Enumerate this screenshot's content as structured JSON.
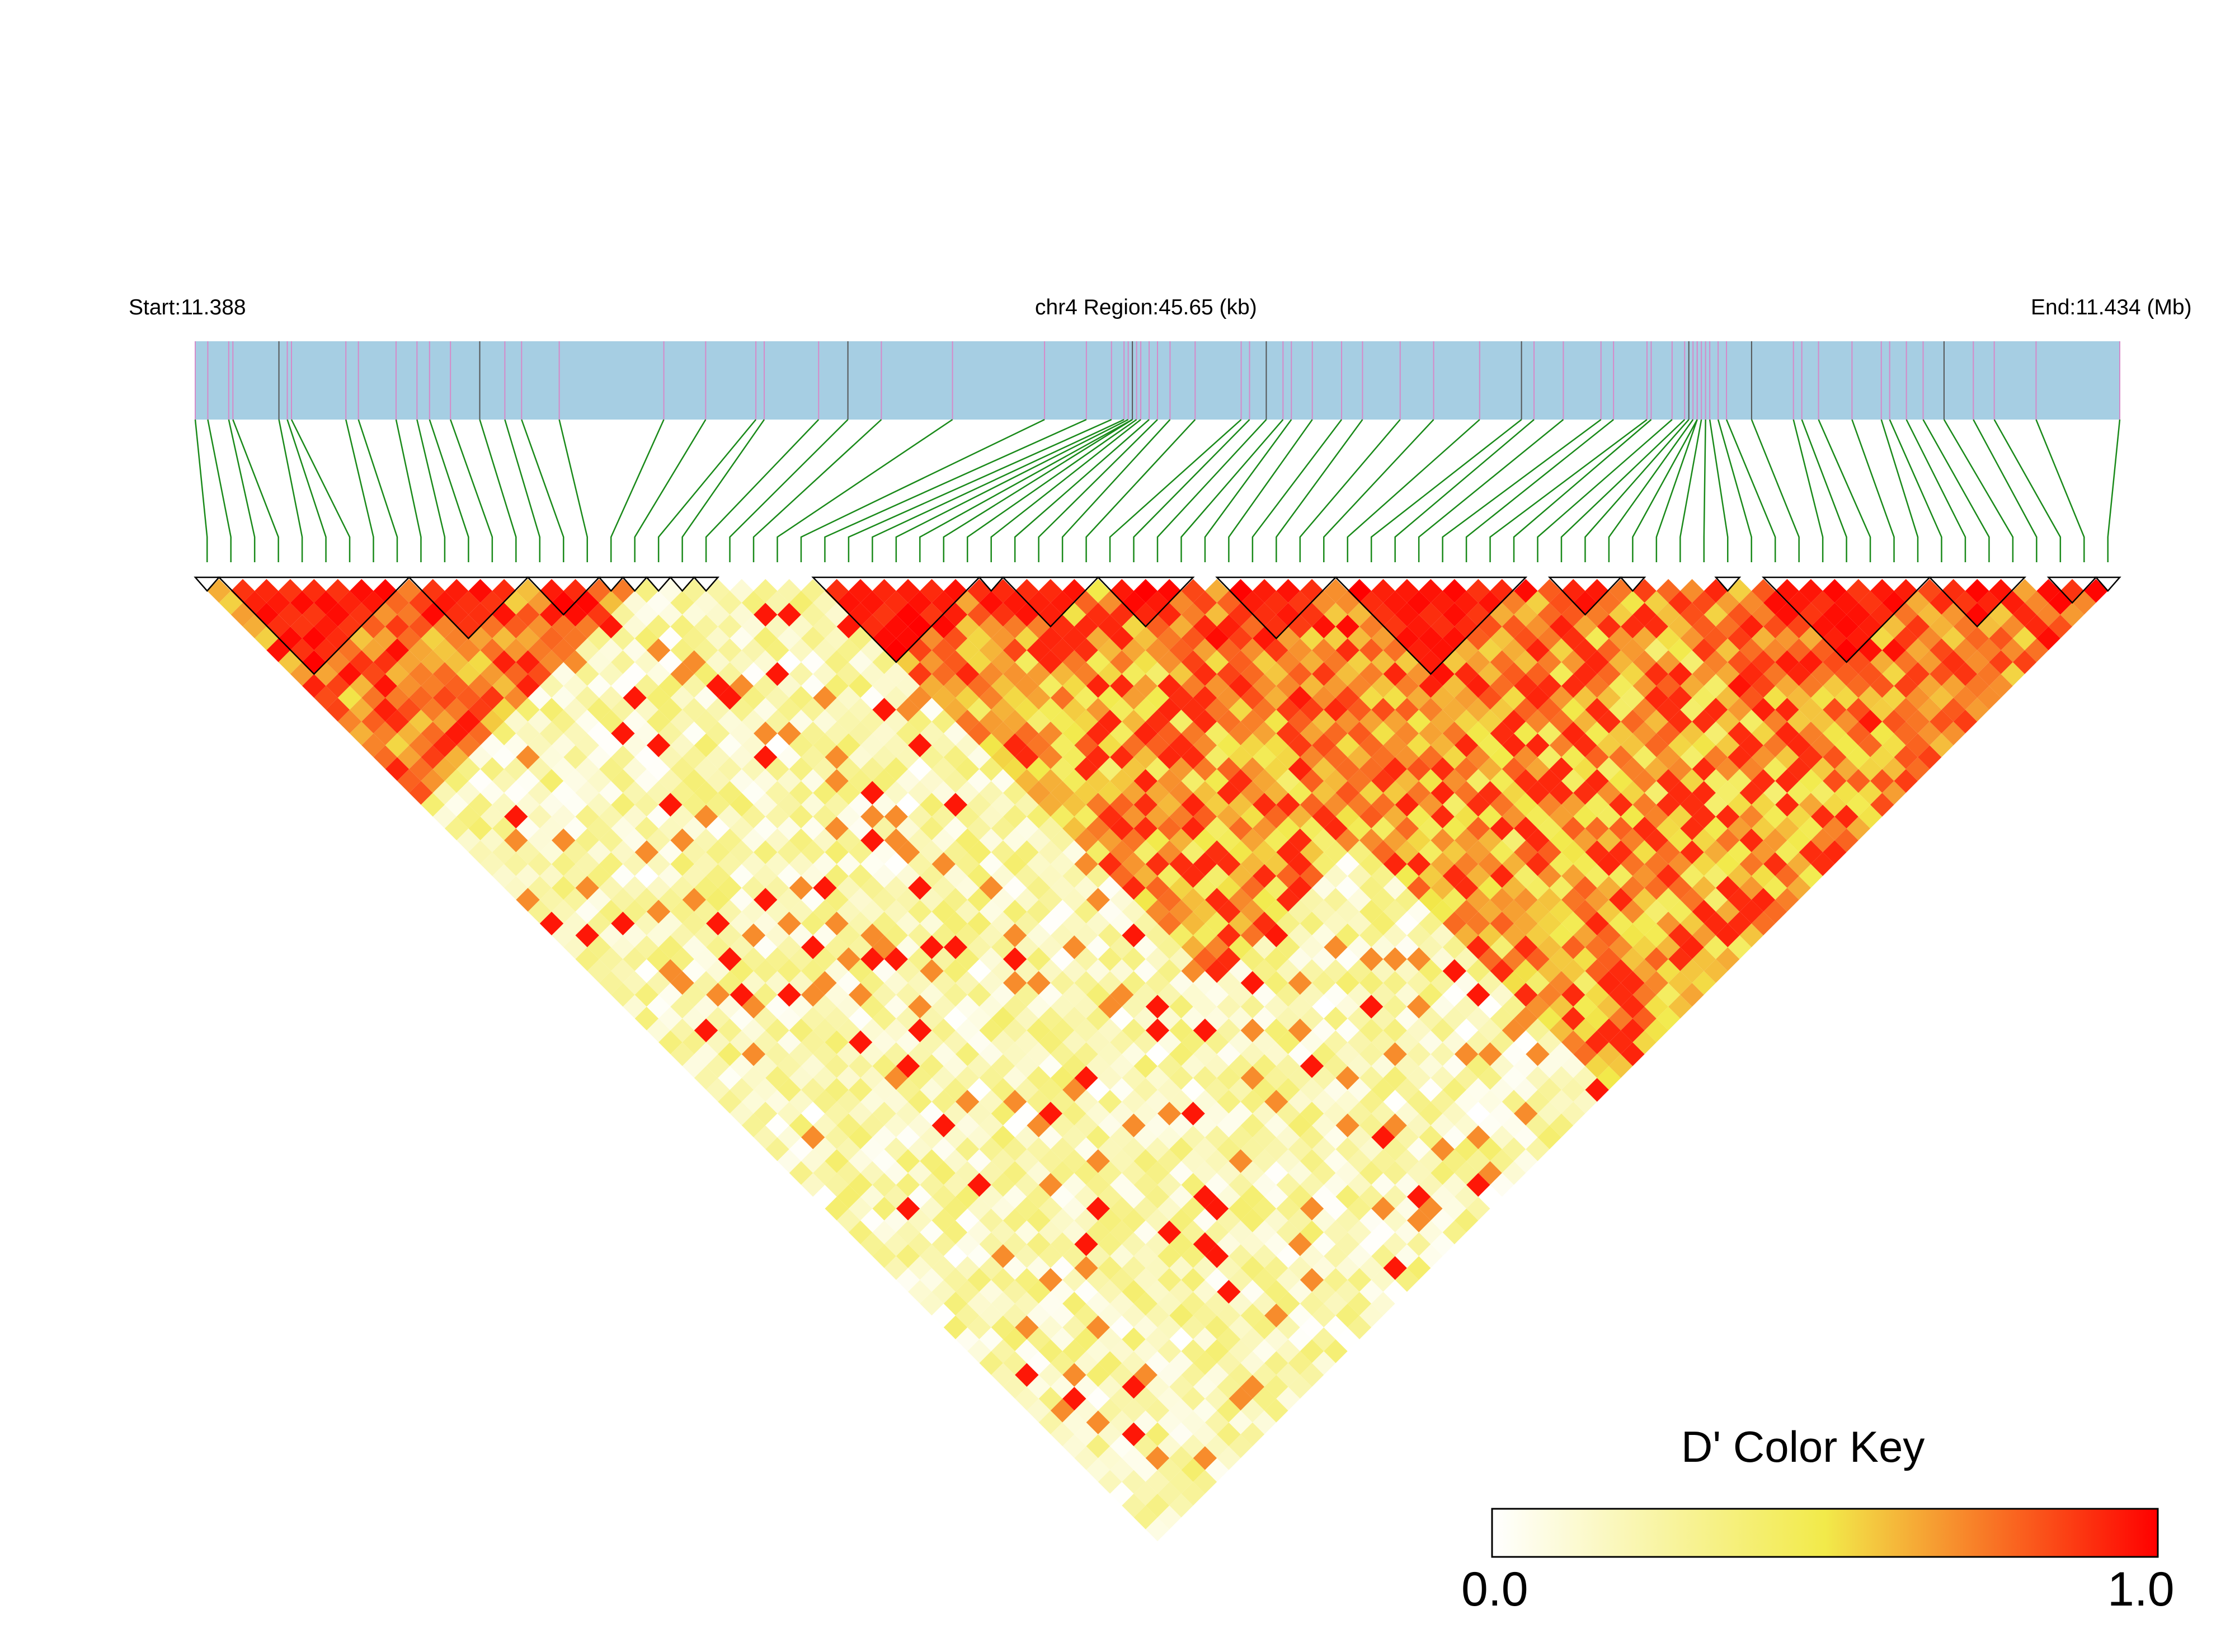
{
  "header": {
    "start_label": "Start:11.388",
    "region_label": "chr4 Region:45.65 (kb)",
    "end_label": "End:11.434 (Mb)"
  },
  "colors": {
    "track_fill": "#a6cee3",
    "snp_tick": "#d58ac9",
    "snp_tick_dark": "#555555",
    "connector": "#1a8a1a",
    "scale_low": "#ffffff",
    "scale_mid": "#f2ea4a",
    "scale_high": "#ff0000",
    "block_outline": "#000000"
  },
  "legend": {
    "title": "D' Color Key",
    "min_label": "0.0",
    "max_label": "1.0"
  },
  "chart_data": {
    "type": "heatmap",
    "title": "",
    "metric": "D'",
    "region": {
      "chromosome": "chr4",
      "start_mb": 11.388,
      "end_mb": 11.434,
      "length_kb": 45.65
    },
    "n_snps": 81,
    "color_range": [
      0.0,
      1.0
    ],
    "snp_positions_mb": [
      11.388,
      11.3883,
      11.3888,
      11.3889,
      11.39,
      11.3902,
      11.3903,
      11.3916,
      11.3919,
      11.3928,
      11.3933,
      11.3936,
      11.3941,
      11.3948,
      11.3954,
      11.3958,
      11.3967,
      11.3992,
      11.4002,
      11.4014,
      11.4016,
      11.4029,
      11.4036,
      11.4044,
      11.4061,
      11.4083,
      11.4093,
      11.4099,
      11.4102,
      11.4103,
      11.4104,
      11.4104,
      11.4105,
      11.4106,
      11.4108,
      11.411,
      11.4113,
      11.4119,
      11.413,
      11.4132,
      11.4136,
      11.414,
      11.4142,
      11.4147,
      11.4154,
      11.4159,
      11.4168,
      11.4176,
      11.4187,
      11.4197,
      11.42,
      11.4207,
      11.4216,
      11.4219,
      11.4227,
      11.4228,
      11.4233,
      11.4236,
      11.4237,
      11.4238,
      11.4239,
      11.4239,
      11.424,
      11.4241,
      11.4242,
      11.4244,
      11.4246,
      11.4252,
      11.4262,
      11.4264,
      11.4268,
      11.4276,
      11.4283,
      11.4285,
      11.4289,
      11.4293,
      11.4298,
      11.4305,
      11.431,
      11.432,
      11.434
    ],
    "ld_blocks_snp_ranges": [
      [
        0,
        0
      ],
      [
        1,
        8
      ],
      [
        9,
        13
      ],
      [
        14,
        16
      ],
      [
        17,
        17
      ],
      [
        18,
        18
      ],
      [
        19,
        19
      ],
      [
        20,
        20
      ],
      [
        21,
        21
      ],
      [
        26,
        32
      ],
      [
        33,
        33
      ],
      [
        34,
        37
      ],
      [
        38,
        41
      ],
      [
        43,
        47
      ],
      [
        48,
        55
      ],
      [
        57,
        59
      ],
      [
        60,
        60
      ],
      [
        64,
        64
      ],
      [
        66,
        72
      ],
      [
        73,
        76
      ],
      [
        78,
        79
      ],
      [
        80,
        80
      ]
    ],
    "dprime_description": "Pairwise D' between 81 SNPs shown as rotated triangle matrix; strong LD (red) near the diagonal in blocks at SNPs 1-16, 26-37 and 38-55, 66-76, weaker LD (white/yellow) at larger distances."
  }
}
